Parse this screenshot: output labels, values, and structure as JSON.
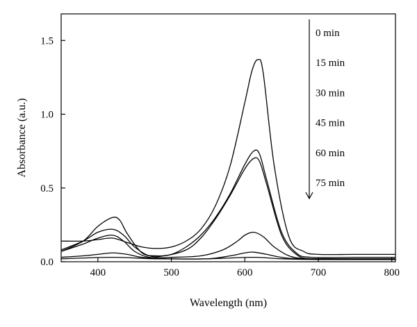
{
  "chart_data": {
    "type": "line",
    "xlabel": "Wavelength (nm)",
    "ylabel": "Absorbance (a.u.)",
    "xlim": [
      350,
      805
    ],
    "ylim": [
      0,
      1.68
    ],
    "x_ticks": [
      400,
      500,
      600,
      700,
      800
    ],
    "x_tick_labels": [
      "400",
      "500",
      "600",
      "700",
      "800"
    ],
    "y_ticks": [
      0,
      0.5,
      1.0,
      1.5
    ],
    "y_tick_labels": [
      "0.0",
      "0.5",
      "1.0",
      "1.5"
    ],
    "grid": false,
    "legend_note": "arrow indicates decreasing absorbance with time",
    "line_color": "#000000",
    "series": [
      {
        "name": "0 min",
        "x": [
          350,
          380,
          400,
          420,
          440,
          460,
          480,
          500,
          520,
          540,
          560,
          580,
          600,
          610,
          618,
          625,
          640,
          660,
          680,
          700,
          750,
          805
        ],
        "y": [
          0.14,
          0.14,
          0.15,
          0.16,
          0.13,
          0.1,
          0.09,
          0.1,
          0.14,
          0.22,
          0.38,
          0.65,
          1.08,
          1.3,
          1.37,
          1.28,
          0.65,
          0.17,
          0.07,
          0.05,
          0.05,
          0.05
        ]
      },
      {
        "name": "15 min",
        "x": [
          350,
          380,
          400,
          420,
          430,
          440,
          460,
          480,
          500,
          520,
          540,
          560,
          580,
          600,
          612,
          620,
          630,
          650,
          670,
          690,
          750,
          805
        ],
        "y": [
          0.07,
          0.14,
          0.24,
          0.3,
          0.28,
          0.19,
          0.06,
          0.04,
          0.05,
          0.1,
          0.18,
          0.3,
          0.46,
          0.66,
          0.75,
          0.73,
          0.55,
          0.2,
          0.06,
          0.03,
          0.03,
          0.03
        ]
      },
      {
        "name": "30 min",
        "x": [
          350,
          380,
          400,
          420,
          435,
          450,
          470,
          490,
          520,
          540,
          560,
          580,
          600,
          612,
          620,
          630,
          650,
          670,
          690,
          750,
          805
        ],
        "y": [
          0.08,
          0.14,
          0.2,
          0.22,
          0.18,
          0.1,
          0.04,
          0.04,
          0.08,
          0.16,
          0.29,
          0.45,
          0.63,
          0.7,
          0.68,
          0.52,
          0.18,
          0.05,
          0.02,
          0.02,
          0.02
        ]
      },
      {
        "name": "45 min",
        "x": [
          350,
          380,
          400,
          420,
          435,
          450,
          470,
          500,
          540,
          570,
          590,
          600,
          612,
          625,
          640,
          660,
          680,
          700,
          805
        ],
        "y": [
          0.07,
          0.12,
          0.16,
          0.18,
          0.14,
          0.07,
          0.03,
          0.03,
          0.04,
          0.08,
          0.14,
          0.18,
          0.2,
          0.17,
          0.1,
          0.04,
          0.02,
          0.02,
          0.02
        ]
      },
      {
        "name": "60 min",
        "x": [
          350,
          380,
          400,
          420,
          440,
          460,
          500,
          550,
          580,
          600,
          612,
          630,
          650,
          680,
          805
        ],
        "y": [
          0.03,
          0.04,
          0.05,
          0.06,
          0.05,
          0.03,
          0.02,
          0.02,
          0.04,
          0.06,
          0.065,
          0.05,
          0.03,
          0.02,
          0.02
        ]
      },
      {
        "name": "75 min",
        "x": [
          350,
          420,
          480,
          550,
          610,
          650,
          700,
          805
        ],
        "y": [
          0.02,
          0.03,
          0.02,
          0.02,
          0.03,
          0.02,
          0.015,
          0.015
        ]
      }
    ],
    "legend_labels": [
      "0 min",
      "15 min",
      "30 min",
      "45 min",
      "60 min",
      "75 min"
    ]
  }
}
